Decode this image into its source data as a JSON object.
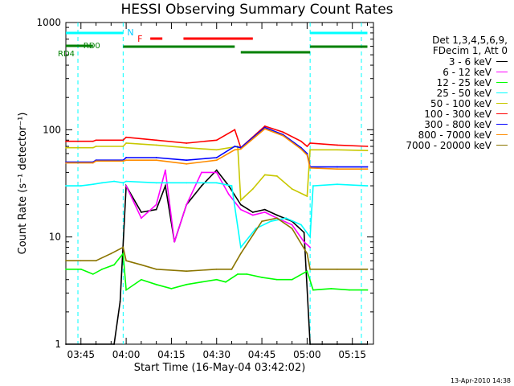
{
  "title": "HESSI Observing Summary Count Rates",
  "footer": "13-Apr-2010 14:38",
  "chart_data": {
    "type": "line",
    "title": "HESSI Observing Summary Count Rates",
    "xlabel": "Start Time (16-May-04 03:42:02)",
    "ylabel": "Count Rate (s⁻¹ detector⁻¹)",
    "yscale": "log",
    "xlim": [
      "03:40",
      "05:22"
    ],
    "ylim": [
      1,
      1000
    ],
    "xticks": [
      "03:45",
      "04:00",
      "04:15",
      "04:30",
      "04:45",
      "05:00",
      "05:15"
    ],
    "yticks": [
      "1",
      "10",
      "100",
      "1000"
    ],
    "legend_header": [
      "Det 1,3,4,5,6,9,",
      "FDecim 1, Att 0"
    ],
    "legend_position": "outside-right",
    "series": [
      {
        "name": "3 - 6 keV",
        "color": "#000000",
        "x": [
          "03:40",
          "03:45",
          "03:50",
          "03:56",
          "03:58",
          "04:00",
          "04:05",
          "04:10",
          "04:13",
          "04:16",
          "04:20",
          "04:25",
          "04:30",
          "04:34",
          "04:38",
          "04:42",
          "04:46",
          "04:50",
          "04:55",
          "04:59",
          "05:01",
          "05:05",
          "05:10",
          "05:15",
          "05:20"
        ],
        "values": [
          1,
          1,
          1,
          1,
          2.5,
          30,
          17,
          18,
          30,
          9,
          20,
          30,
          42,
          30,
          20,
          17,
          18,
          16,
          14,
          11,
          1,
          1,
          1,
          1,
          1
        ]
      },
      {
        "name": "6 - 12 keV",
        "color": "#ff00ff",
        "x": [
          "04:00",
          "04:05",
          "04:10",
          "04:13",
          "04:16",
          "04:20",
          "04:25",
          "04:30",
          "04:34",
          "04:38",
          "04:42",
          "04:46",
          "04:50",
          "04:55",
          "04:59",
          "05:01"
        ],
        "values": [
          30,
          15,
          20,
          42,
          9,
          20,
          40,
          40,
          25,
          18,
          16,
          17,
          15,
          13,
          9,
          8
        ]
      },
      {
        "name": "12 - 25 keV",
        "color": "#00ff00",
        "x": [
          "03:40",
          "03:45",
          "03:49",
          "03:52",
          "03:56",
          "03:59",
          "04:00",
          "04:05",
          "04:10",
          "04:15",
          "04:20",
          "04:25",
          "04:30",
          "04:33",
          "04:37",
          "04:40",
          "04:45",
          "04:50",
          "04:55",
          "05:00",
          "05:02",
          "05:08",
          "05:14",
          "05:20"
        ],
        "values": [
          5,
          5,
          4.5,
          5,
          5.5,
          7,
          3.2,
          4,
          3.6,
          3.3,
          3.6,
          3.8,
          4,
          3.8,
          4.5,
          4.5,
          4.2,
          4,
          4,
          4.8,
          3.2,
          3.3,
          3.2,
          3.2
        ]
      },
      {
        "name": "25 - 50 keV",
        "color": "#00ffff",
        "x": [
          "03:40",
          "03:45",
          "03:49",
          "03:52",
          "03:56",
          "03:59",
          "04:00",
          "04:10",
          "04:20",
          "04:30",
          "04:35",
          "04:38",
          "04:43",
          "04:48",
          "04:53",
          "04:58",
          "05:01",
          "05:02",
          "05:10",
          "05:20"
        ],
        "values": [
          30,
          30,
          31,
          32,
          33,
          32,
          33,
          32,
          32,
          32,
          30,
          8,
          12,
          14,
          15,
          13,
          10,
          30,
          31,
          30
        ]
      },
      {
        "name": "50 - 100 keV",
        "color": "#c8c800",
        "x": [
          "03:40",
          "03:49",
          "03:50",
          "03:59",
          "04:00",
          "04:10",
          "04:20",
          "04:30",
          "04:37",
          "04:38",
          "04:42",
          "04:46",
          "04:50",
          "04:55",
          "05:00",
          "05:01",
          "05:10",
          "05:20"
        ],
        "values": [
          68,
          68,
          70,
          70,
          75,
          72,
          68,
          65,
          70,
          22,
          28,
          38,
          37,
          28,
          24,
          65,
          65,
          64
        ]
      },
      {
        "name": "100 - 300 keV",
        "color": "#ff0000",
        "x": [
          "03:40",
          "03:49",
          "03:50",
          "03:59",
          "04:00",
          "04:10",
          "04:20",
          "04:30",
          "04:36",
          "04:38",
          "04:46",
          "04:52",
          "04:58",
          "05:00",
          "05:01",
          "05:10",
          "05:20"
        ],
        "values": [
          78,
          78,
          80,
          80,
          85,
          80,
          75,
          80,
          100,
          68,
          108,
          95,
          78,
          70,
          75,
          72,
          70
        ]
      },
      {
        "name": "300 - 800 keV",
        "color": "#0000ff",
        "x": [
          "03:40",
          "03:49",
          "03:50",
          "03:59",
          "04:00",
          "04:10",
          "04:20",
          "04:30",
          "04:36",
          "04:38",
          "04:46",
          "04:52",
          "04:58",
          "05:00",
          "05:01",
          "05:10",
          "05:20"
        ],
        "values": [
          50,
          50,
          52,
          52,
          55,
          55,
          52,
          55,
          70,
          68,
          105,
          90,
          68,
          60,
          45,
          45,
          45
        ]
      },
      {
        "name": "800 - 7000 keV",
        "color": "#ff8c00",
        "x": [
          "03:40",
          "03:49",
          "03:50",
          "03:59",
          "04:00",
          "04:10",
          "04:20",
          "04:30",
          "04:36",
          "04:38",
          "04:46",
          "04:52",
          "04:58",
          "05:00",
          "05:01",
          "05:10",
          "05:20"
        ],
        "values": [
          49,
          49,
          51,
          51,
          52,
          52,
          48,
          52,
          65,
          66,
          102,
          88,
          66,
          58,
          44,
          43,
          43
        ]
      },
      {
        "name": "7000 - 20000 keV",
        "color": "#8b7500",
        "x": [
          "03:40",
          "03:45",
          "03:50",
          "03:55",
          "03:59",
          "04:00",
          "04:05",
          "04:10",
          "04:20",
          "04:30",
          "04:35",
          "04:38",
          "04:45",
          "04:50",
          "04:55",
          "05:00",
          "05:01",
          "05:10",
          "05:20"
        ],
        "values": [
          6,
          6,
          6,
          7,
          8,
          6,
          5.5,
          5,
          4.8,
          5,
          5,
          7,
          14,
          15,
          12,
          7,
          5,
          5,
          5
        ]
      }
    ],
    "annotations": {
      "attenuator_segments": {
        "label": "N",
        "color": "#00ffff",
        "segments": [
          [
            "03:40",
            "03:59"
          ],
          [
            "05:01",
            "05:20"
          ]
        ]
      },
      "flare_segments": {
        "label": "F",
        "color": "#ff0000",
        "segments": [
          [
            "04:08",
            "04:12"
          ],
          [
            "04:19",
            "04:42"
          ]
        ]
      },
      "decimation_segments": {
        "labels": [
          "RD0",
          "RD4"
        ],
        "color": "#008000",
        "segments": [
          [
            "03:40",
            "03:49"
          ],
          [
            "03:59",
            "04:36"
          ],
          [
            "04:38",
            "05:01"
          ],
          [
            "05:01",
            "05:20"
          ]
        ]
      },
      "dashed_lines": [
        "03:44",
        "03:59",
        "05:01",
        "05:18"
      ]
    }
  }
}
